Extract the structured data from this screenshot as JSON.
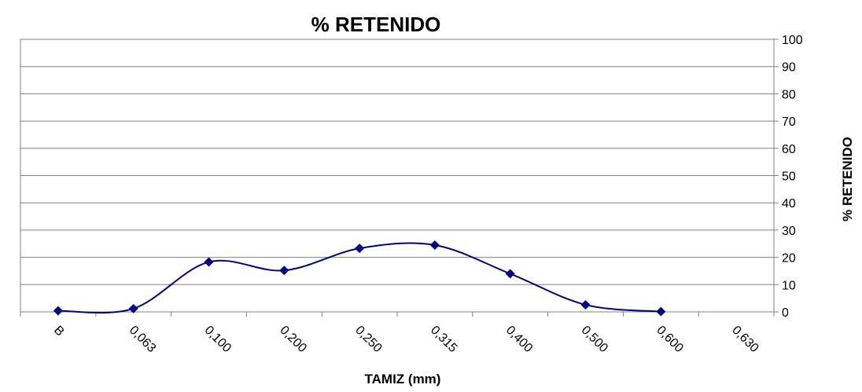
{
  "chart_data": {
    "type": "line",
    "title": "% RETENIDO",
    "xlabel": "TAMIZ (mm)",
    "ylabel": "% RETENIDO",
    "categories": [
      "B",
      "0,063",
      "0,100",
      "0,200",
      "0,250",
      "0,315",
      "0,400",
      "0,500",
      "0,600",
      "0,630"
    ],
    "y_ticks": [
      "0",
      "10",
      "20",
      "30",
      "40",
      "50",
      "60",
      "70",
      "80",
      "90",
      "100"
    ],
    "ylim": [
      0,
      100
    ],
    "y_axis_side": "right",
    "grid": true,
    "legend": "none",
    "series": [
      {
        "values": [
          0.4,
          1.2,
          18.3,
          15.2,
          23.3,
          24.5,
          14.0,
          2.6,
          0.1,
          null
        ],
        "color": "#000080",
        "marker": "diamond",
        "smooth": true
      }
    ]
  }
}
